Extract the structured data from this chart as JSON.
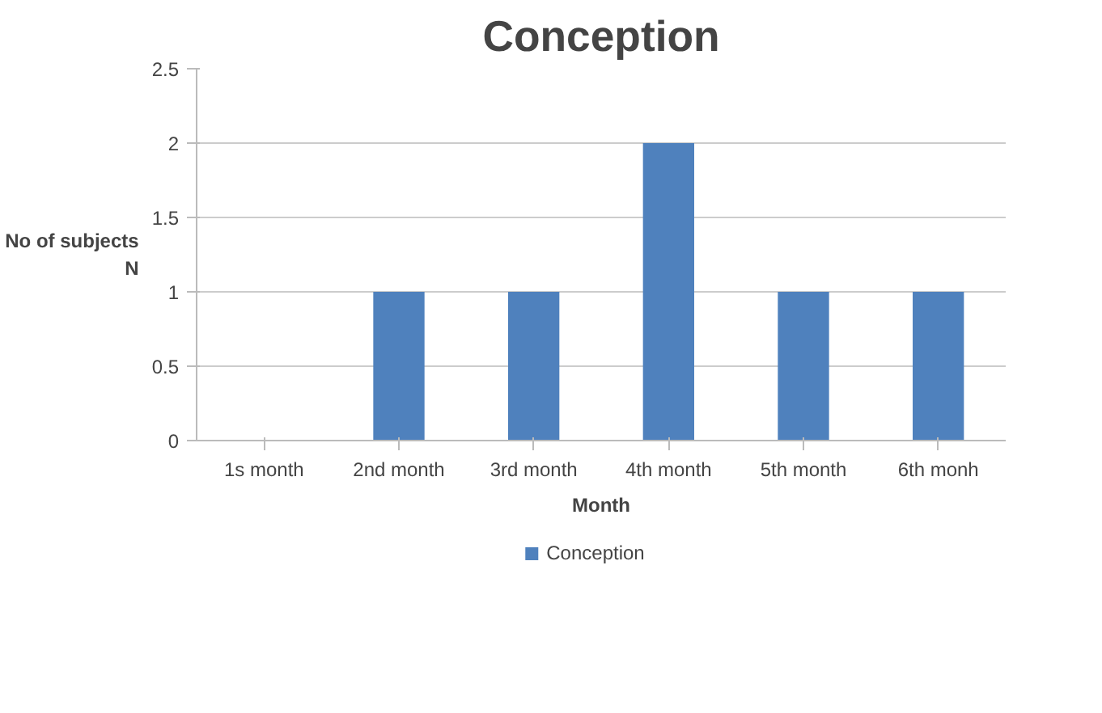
{
  "chart_data": {
    "type": "bar",
    "title": "Conception",
    "xlabel": "Month",
    "ylabel": "No of subjects\nN",
    "categories": [
      "1s month",
      "2nd month",
      "3rd month",
      "4th month",
      "5th month",
      "6th monh"
    ],
    "series": [
      {
        "name": "Conception",
        "color": "#4f81bd",
        "values": [
          0,
          1,
          1,
          2,
          1,
          1
        ]
      }
    ],
    "ylim": [
      0,
      2.5
    ],
    "yticks": [
      0,
      0.5,
      1,
      1.5,
      2,
      2.5
    ],
    "grid": "y",
    "legend": "bottom"
  }
}
